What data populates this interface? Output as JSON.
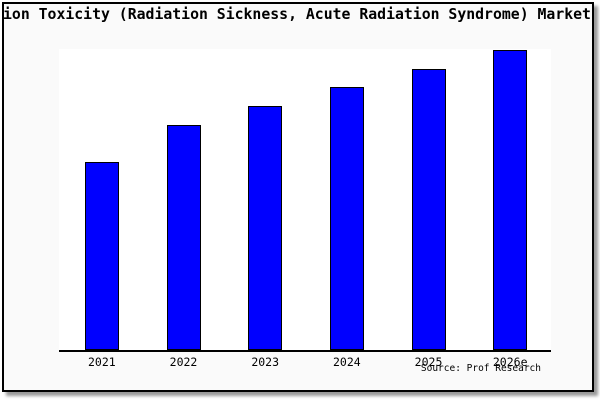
{
  "chart_data": {
    "type": "bar",
    "title": "ion Toxicity (Radiation Sickness, Acute Radiation Syndrome) Market",
    "categories": [
      "2021",
      "2022",
      "2023",
      "2024",
      "2025",
      "2026e"
    ],
    "values_relative_pct": [
      62.7,
      75.0,
      81.3,
      87.7,
      93.7,
      100.0
    ],
    "xlabel": "",
    "ylabel": "",
    "y_axis_visible": false,
    "grid": false,
    "legend": false,
    "bar_color": "#0000ff",
    "bar_border_color": "#000000",
    "source_note": "Source: Prof Research"
  },
  "frame": {
    "background": "#fafafa",
    "border_color": "#000000",
    "plot_background": "#ffffff"
  }
}
